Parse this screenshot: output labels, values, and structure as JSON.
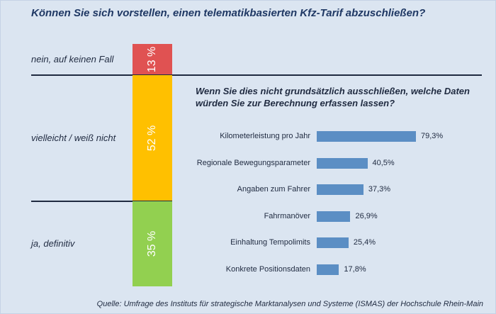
{
  "title": "Können Sie sich vorstellen, einen telematikbasierten Kfz-Tarif abzuschließen?",
  "source": "Quelle: Umfrage des Instituts für strategische Marktanalysen und Systeme (ISMAS) der Hochschule Rhein-Main",
  "chart_data": [
    {
      "type": "bar",
      "orientation": "stacked-vertical",
      "title": "Können Sie sich vorstellen, einen telematikbasierten Kfz-Tarif abzuschließen?",
      "categories": [
        "nein, auf keinen Fall",
        "vielleicht / weiß nicht",
        "ja, definitiv"
      ],
      "values": [
        13,
        52,
        35
      ],
      "value_labels": [
        "13 %",
        "52 %",
        "35 %"
      ],
      "colors": [
        "#e05252",
        "#ffc000",
        "#92d050"
      ]
    },
    {
      "type": "bar",
      "orientation": "horizontal",
      "title": "Wenn Sie dies nicht grundsätzlich ausschließen, welche Daten würden Sie zur Berechnung erfassen lassen?",
      "categories": [
        "Kilometerleistung pro Jahr",
        "Regionale Bewegungsparameter",
        "Angaben zum Fahrer",
        "Fahrmanöver",
        "Einhaltung Tempolimits",
        "Konkrete Positionsdaten"
      ],
      "values": [
        79.3,
        40.5,
        37.3,
        26.9,
        25.4,
        17.8
      ],
      "value_labels": [
        "79,3%",
        "40,5%",
        "37,3%",
        "26,9%",
        "25,4%",
        "17,8%"
      ],
      "xlim": [
        0,
        100
      ],
      "bar_color": "#5b8ec4"
    }
  ]
}
